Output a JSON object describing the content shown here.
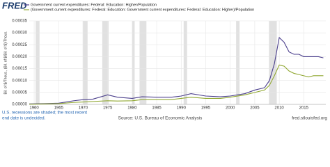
{
  "chart_data": {
    "type": "line",
    "logo": "FRED",
    "y_label": "Bil. of $/Thous., (Bil. of $/Bil. of $)/Thous.",
    "note": [
      "U.S. recessions are shaded; the most recent",
      "end date is undecided."
    ],
    "source": "Source: U.S. Bureau of Economic Analysis",
    "site": "fred.stlouisfed.org",
    "x": [
      1959,
      1962,
      1965,
      1968,
      1970,
      1972,
      1975,
      1977,
      1980,
      1982,
      1985,
      1988,
      1990,
      1992,
      1995,
      1998,
      2000,
      2003,
      2005,
      2007,
      2008,
      2009,
      2010,
      2011,
      2012,
      2013,
      2014,
      2015,
      2016,
      2017,
      2018,
      2019
    ],
    "series": [
      {
        "name": "Government current expenditures: Federal: Education: Higher/Population",
        "color": "#4b3f8c",
        "values": [
          2e-06,
          3e-06,
          5e-06,
          1.5e-05,
          2e-05,
          2.2e-05,
          4e-05,
          3e-05,
          2.5e-05,
          3.2e-05,
          3e-05,
          3e-05,
          3.5e-05,
          4.5e-05,
          3.5e-05,
          3.2e-05,
          3.5e-05,
          4.5e-05,
          6e-05,
          7e-05,
          0.0001,
          0.00017,
          0.00028,
          0.00026,
          0.00022,
          0.00021,
          0.00021,
          0.0002,
          0.0002,
          0.0002,
          0.0002,
          0.000195
        ]
      },
      {
        "name": "(Government current expenditures: Federal: Education: Government current expenditures: Federal: Education: Higher)/Population",
        "color": "#91a832",
        "values": [
          1e-06,
          2e-06,
          3e-06,
          8e-06,
          1e-05,
          1.2e-05,
          1.5e-05,
          1.4e-05,
          1.5e-05,
          2e-05,
          2e-05,
          2e-05,
          2.5e-05,
          3e-05,
          2.5e-05,
          2.5e-05,
          3e-05,
          4e-05,
          5e-05,
          6e-05,
          8e-05,
          0.00012,
          0.000165,
          0.00016,
          0.00014,
          0.00013,
          0.000125,
          0.00012,
          0.000115,
          0.00012,
          0.00012,
          0.00012
        ]
      }
    ],
    "recessions": [
      [
        1960.3,
        1961.1
      ],
      [
        1969.9,
        1970.9
      ],
      [
        1973.9,
        1975.2
      ],
      [
        1980.0,
        1980.5
      ],
      [
        1981.5,
        1982.9
      ],
      [
        1990.5,
        1991.2
      ],
      [
        2001.2,
        2001.9
      ],
      [
        2007.9,
        2009.5
      ]
    ],
    "recession_color": "#e1e1e1",
    "xlim": [
      1959,
      2019.5
    ],
    "xticks": [
      1960,
      1965,
      1970,
      1975,
      1980,
      1985,
      1990,
      1995,
      2000,
      2005,
      2010,
      2015
    ],
    "ylim": [
      0,
      0.00035
    ],
    "yticks": [
      {
        "value": 0,
        "label": "0.00000"
      },
      {
        "value": 5e-05,
        "label": "0.00005"
      },
      {
        "value": 0.0001,
        "label": "0.00010"
      },
      {
        "value": 0.00015,
        "label": "0.00015"
      },
      {
        "value": 0.0002,
        "label": "0.00020"
      },
      {
        "value": 0.00025,
        "label": "0.00025"
      },
      {
        "value": 0.0003,
        "label": "0.00030"
      },
      {
        "value": 0.00035,
        "label": "0.00035"
      }
    ],
    "grid": true
  }
}
